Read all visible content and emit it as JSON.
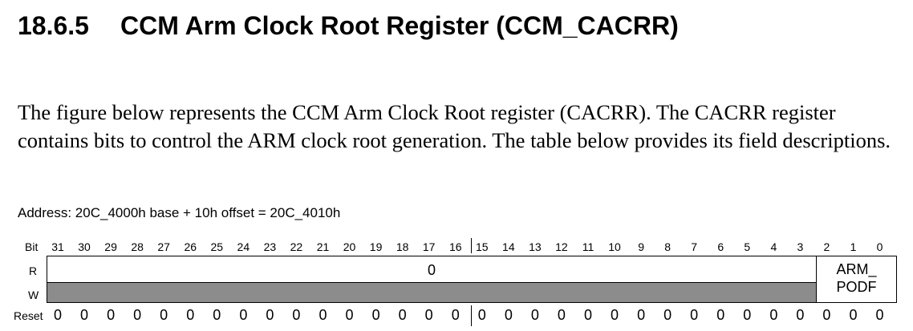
{
  "section": {
    "number": "18.6.5",
    "title": "CCM Arm Clock Root Register (CCM_CACRR)"
  },
  "description": "The figure below represents the CCM Arm Clock Root register (CACRR). The CACRR register contains bits to control the ARM clock root generation. The table below provides its field descriptions.",
  "address": "Address: 20C_4000h base + 10h offset = 20C_4010h",
  "register": {
    "row_labels": {
      "bit": "Bit",
      "read": "R",
      "write": "W",
      "reset": "Reset"
    },
    "bits": [
      "31",
      "30",
      "29",
      "28",
      "27",
      "26",
      "25",
      "24",
      "23",
      "22",
      "21",
      "20",
      "19",
      "18",
      "17",
      "16",
      "15",
      "14",
      "13",
      "12",
      "11",
      "10",
      "9",
      "8",
      "7",
      "6",
      "5",
      "4",
      "3",
      "2",
      "1",
      "0"
    ],
    "reserved_read_value": "0",
    "field": {
      "name_line1": "ARM_",
      "name_line2": "PODF",
      "bit_range": "2:0"
    },
    "reset_values": [
      "0",
      "0",
      "0",
      "0",
      "0",
      "0",
      "0",
      "0",
      "0",
      "0",
      "0",
      "0",
      "0",
      "0",
      "0",
      "0",
      "0",
      "0",
      "0",
      "0",
      "0",
      "0",
      "0",
      "0",
      "0",
      "0",
      "0",
      "0",
      "0",
      "0",
      "0",
      "0"
    ]
  }
}
